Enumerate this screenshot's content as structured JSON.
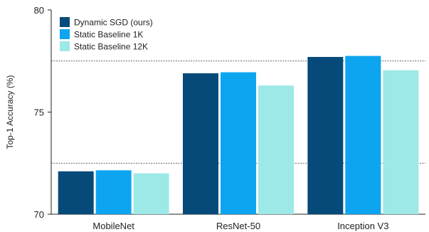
{
  "chart_data": {
    "type": "bar",
    "categories": [
      "MobileNet",
      "ResNet-50",
      "Inception V3"
    ],
    "series": [
      {
        "name": "Dynamic SGD (ours)",
        "color": "#064a7a",
        "values": [
          72.1,
          76.9,
          77.7
        ]
      },
      {
        "name": "Static Baseline 1K",
        "color": "#0ea5f0",
        "values": [
          72.15,
          76.95,
          77.75
        ]
      },
      {
        "name": "Static Baseline 12K",
        "color": "#9ce9e8",
        "values": [
          72.0,
          76.3,
          77.05
        ]
      }
    ],
    "ylabel": "Top-1 Accuracy (%)",
    "xlabel": "",
    "ylim": [
      70,
      80
    ],
    "yticks": [
      70,
      75,
      80
    ],
    "reference_lines": [
      72.5,
      77.5
    ],
    "grid": false,
    "legend_position": "top-left"
  }
}
